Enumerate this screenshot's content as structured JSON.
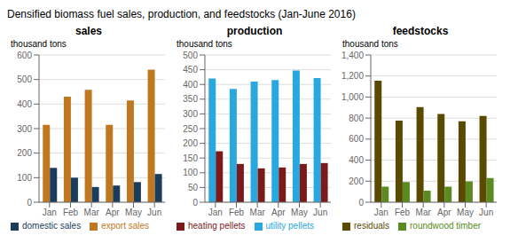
{
  "title": "Densified biomass fuel sales, production, and feedstocks (Jan-June 2016)",
  "chart_data": [
    {
      "type": "bar",
      "title": "sales",
      "ylabel": "thousand tons",
      "categories": [
        "Jan",
        "Feb",
        "Mar",
        "Apr",
        "May",
        "Jun"
      ],
      "series": [
        {
          "name": "export sales",
          "color": "#c07820",
          "values": [
            315,
            430,
            458,
            315,
            415,
            540
          ]
        },
        {
          "name": "domestic sales",
          "color": "#1a3d5c",
          "values": [
            140,
            100,
            62,
            68,
            82,
            115
          ]
        }
      ],
      "ylim": [
        0,
        600
      ],
      "yticks": [
        0,
        100,
        200,
        300,
        400,
        500,
        600
      ],
      "grid": true,
      "legend": "bottom"
    },
    {
      "type": "bar",
      "title": "production",
      "ylabel": "thousand tons",
      "categories": [
        "Jan",
        "Feb",
        "Mar",
        "Apr",
        "May",
        "Jun"
      ],
      "series": [
        {
          "name": "utility pellets",
          "color": "#29a8e0",
          "values": [
            420,
            385,
            410,
            415,
            447,
            422
          ]
        },
        {
          "name": "heating pellets",
          "color": "#7b1a1a",
          "values": [
            173,
            130,
            115,
            118,
            130,
            133
          ]
        }
      ],
      "ylim": [
        0,
        500
      ],
      "yticks": [
        0,
        50,
        100,
        150,
        200,
        250,
        300,
        350,
        400,
        450,
        500
      ],
      "grid": true,
      "legend": "bottom"
    },
    {
      "type": "bar",
      "title": "feedstocks",
      "ylabel": "thousand tons",
      "categories": [
        "Jan",
        "Feb",
        "Mar",
        "Apr",
        "May",
        "Jun"
      ],
      "series": [
        {
          "name": "residuals",
          "color": "#5a4a00",
          "values": [
            1155,
            775,
            905,
            840,
            770,
            820
          ]
        },
        {
          "name": "roundwood timber",
          "color": "#5a8a20",
          "values": [
            148,
            192,
            110,
            148,
            198,
            230
          ]
        }
      ],
      "ylim": [
        0,
        1400
      ],
      "yticks": [
        0,
        200,
        400,
        600,
        800,
        {
          "value": 1000,
          "label": "1,000"
        },
        {
          "value": 1200,
          "label": "1,200"
        },
        {
          "value": 1400,
          "label": "1,400"
        }
      ],
      "grid": true,
      "legend": "bottom"
    }
  ]
}
